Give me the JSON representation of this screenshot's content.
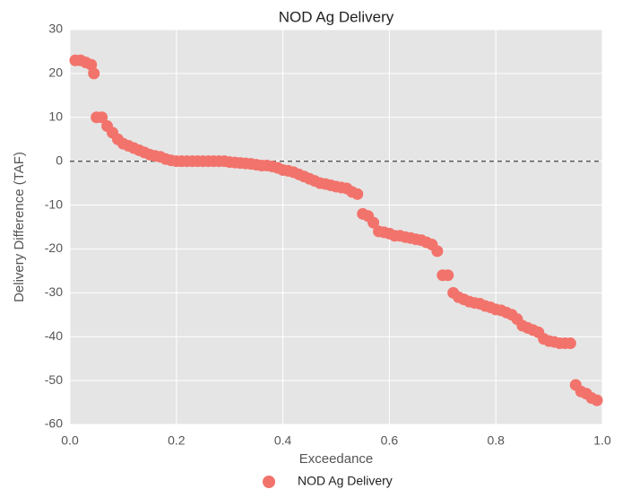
{
  "chart_data": {
    "type": "scatter",
    "title": "NOD Ag Delivery",
    "x_label": "Exceedance",
    "y_label": "Delivery Difference (TAF)",
    "series": [
      {
        "name": "NOD Ag Delivery",
        "color": "#f2736b",
        "x": [
          0.01,
          0.02,
          0.03,
          0.04,
          0.045,
          0.05,
          0.06,
          0.07,
          0.08,
          0.09,
          0.1,
          0.11,
          0.12,
          0.13,
          0.14,
          0.15,
          0.16,
          0.17,
          0.18,
          0.19,
          0.2,
          0.21,
          0.22,
          0.23,
          0.24,
          0.25,
          0.26,
          0.27,
          0.28,
          0.29,
          0.3,
          0.31,
          0.32,
          0.33,
          0.34,
          0.35,
          0.36,
          0.37,
          0.38,
          0.39,
          0.4,
          0.41,
          0.42,
          0.43,
          0.44,
          0.45,
          0.46,
          0.47,
          0.48,
          0.49,
          0.5,
          0.51,
          0.52,
          0.53,
          0.54,
          0.55,
          0.56,
          0.57,
          0.58,
          0.59,
          0.6,
          0.61,
          0.62,
          0.63,
          0.64,
          0.65,
          0.66,
          0.67,
          0.68,
          0.69,
          0.7,
          0.71,
          0.72,
          0.73,
          0.74,
          0.75,
          0.76,
          0.77,
          0.78,
          0.79,
          0.8,
          0.81,
          0.82,
          0.83,
          0.84,
          0.85,
          0.86,
          0.87,
          0.88,
          0.89,
          0.9,
          0.91,
          0.92,
          0.93,
          0.94,
          0.95,
          0.96,
          0.97,
          0.98,
          0.99
        ],
        "values": [
          23,
          23,
          22.5,
          22,
          20,
          10,
          10,
          8,
          6.5,
          5,
          4,
          3.5,
          3,
          2.5,
          2,
          1.5,
          1.2,
          1,
          0.5,
          0.2,
          0,
          0,
          0,
          0,
          0,
          0,
          0,
          0,
          0,
          0,
          -0.2,
          -0.3,
          -0.4,
          -0.5,
          -0.6,
          -0.8,
          -1,
          -1,
          -1.2,
          -1.5,
          -2,
          -2.2,
          -2.5,
          -3,
          -3.5,
          -4,
          -4.5,
          -5,
          -5.2,
          -5.5,
          -5.8,
          -6,
          -6.2,
          -7,
          -7.5,
          -12,
          -12.5,
          -14,
          -16,
          -16.2,
          -16.5,
          -17,
          -17,
          -17.3,
          -17.5,
          -17.8,
          -18,
          -18.5,
          -19,
          -20.5,
          -26,
          -26,
          -30,
          -31,
          -31.5,
          -32,
          -32.3,
          -32.5,
          -33,
          -33.3,
          -33.8,
          -34,
          -34.5,
          -35,
          -36,
          -37.5,
          -38,
          -38.5,
          -39,
          -40.5,
          -41,
          -41.2,
          -41.5,
          -41.5,
          -41.5,
          -51,
          -52.5,
          -53,
          -54,
          -54.5
        ]
      }
    ],
    "xlim": [
      0,
      1
    ],
    "xticks": [
      0.0,
      0.2,
      0.4,
      0.6,
      0.8,
      1.0
    ],
    "ylim": [
      -60,
      30
    ],
    "yticks": [
      -60,
      -50,
      -40,
      -30,
      -20,
      -10,
      0,
      10,
      20,
      30
    ],
    "reference_line": 0,
    "grid": true,
    "legend": "bottom"
  }
}
